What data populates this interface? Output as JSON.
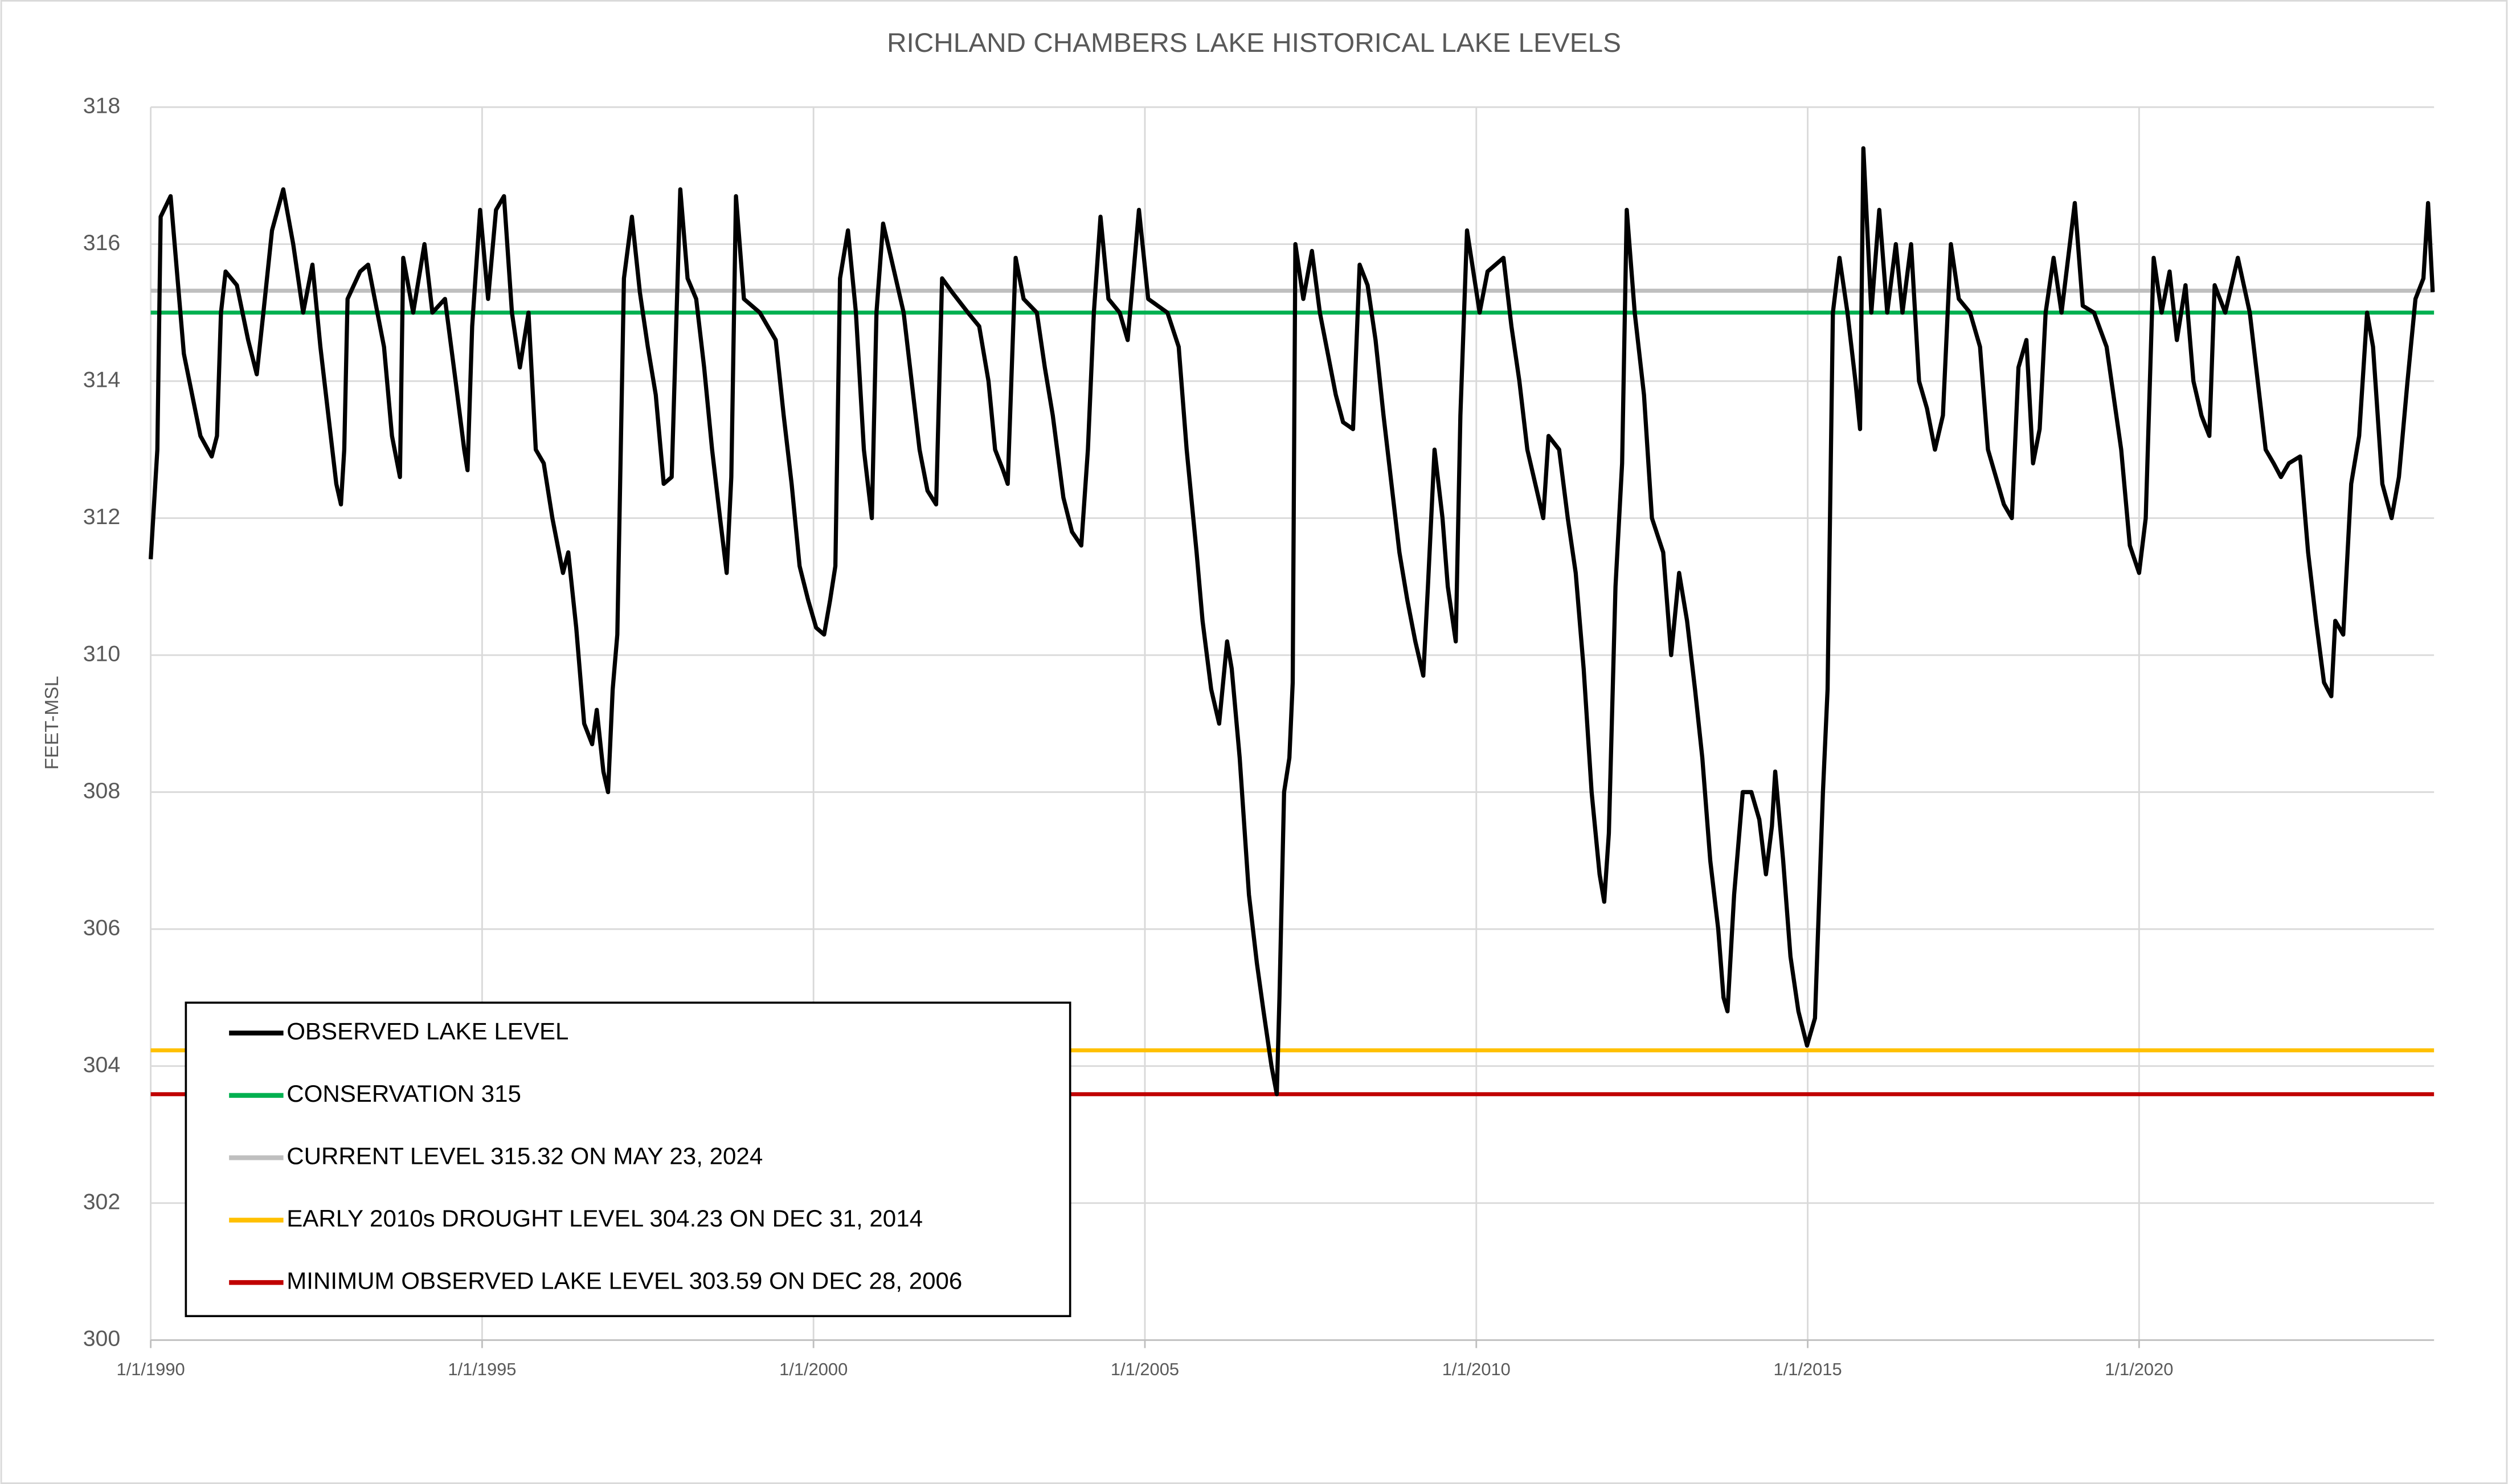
{
  "chart_data": {
    "type": "line",
    "title": "RICHLAND CHAMBERS LAKE HISTORICAL LAKE LEVELS",
    "y_label": "FEET-MSL",
    "x": [
      1990.0,
      1990.1,
      1990.15,
      1990.3,
      1990.5,
      1990.75,
      1990.92,
      1991.0,
      1991.06,
      1991.13,
      1991.3,
      1991.47,
      1991.6,
      1991.7,
      1991.83,
      1992.0,
      1992.15,
      1992.3,
      1992.44,
      1992.56,
      1992.68,
      1992.8,
      1992.87,
      1992.92,
      1992.97,
      1993.16,
      1993.28,
      1993.4,
      1993.52,
      1993.64,
      1993.76,
      1993.81,
      1993.96,
      1994.13,
      1994.25,
      1994.44,
      1994.6,
      1994.73,
      1994.78,
      1994.85,
      1994.97,
      1995.09,
      1995.21,
      1995.33,
      1995.45,
      1995.57,
      1995.7,
      1995.81,
      1995.93,
      1996.06,
      1996.22,
      1996.3,
      1996.42,
      1996.54,
      1996.66,
      1996.73,
      1996.83,
      1996.9,
      1996.97,
      1997.04,
      1997.14,
      1997.26,
      1997.38,
      1997.5,
      1997.62,
      1997.74,
      1997.86,
      1997.99,
      1998.1,
      1998.23,
      1998.35,
      1998.47,
      1998.59,
      1998.69,
      1998.76,
      1998.83,
      1998.95,
      1999.19,
      1999.43,
      1999.55,
      1999.67,
      1999.79,
      1999.92,
      2000.04,
      2000.16,
      2000.25,
      2000.33,
      2000.4,
      2000.52,
      2000.64,
      2000.76,
      2000.88,
      2000.95,
      2001.05,
      2001.17,
      2001.36,
      2001.48,
      2001.6,
      2001.72,
      2001.85,
      2001.94,
      2002.09,
      2002.33,
      2002.5,
      2002.64,
      2002.74,
      2002.86,
      2002.93,
      2003.05,
      2003.17,
      2003.37,
      2003.49,
      2003.61,
      2003.77,
      2003.9,
      2004.04,
      2004.14,
      2004.23,
      2004.33,
      2004.45,
      2004.62,
      2004.74,
      2004.91,
      2005.05,
      2005.34,
      2005.51,
      2005.63,
      2005.78,
      2005.87,
      2006.0,
      2006.12,
      2006.24,
      2006.31,
      2006.43,
      2006.57,
      2006.69,
      2006.79,
      2006.91,
      2006.99,
      2007.03,
      2007.1,
      2007.18,
      2007.23,
      2007.27,
      2007.39,
      2007.52,
      2007.64,
      2007.76,
      2007.88,
      2007.99,
      2008.14,
      2008.24,
      2008.36,
      2008.48,
      2008.6,
      2008.72,
      2008.84,
      2008.96,
      2009.08,
      2009.2,
      2009.27,
      2009.37,
      2009.49,
      2009.57,
      2009.69,
      2009.76,
      2009.86,
      2010.05,
      2010.17,
      2010.41,
      2010.53,
      2010.65,
      2010.77,
      2010.89,
      2011.01,
      2011.09,
      2011.25,
      2011.38,
      2011.5,
      2011.62,
      2011.74,
      2011.86,
      2011.93,
      2012.0,
      2012.1,
      2012.2,
      2012.27,
      2012.39,
      2012.53,
      2012.65,
      2012.82,
      2012.94,
      2013.06,
      2013.18,
      2013.3,
      2013.41,
      2013.53,
      2013.65,
      2013.73,
      2013.79,
      2013.89,
      2014.02,
      2014.15,
      2014.27,
      2014.37,
      2014.46,
      2014.51,
      2014.63,
      2014.74,
      2014.86,
      2014.99,
      2015.11,
      2015.23,
      2015.3,
      2015.38,
      2015.48,
      2015.6,
      2015.72,
      2015.79,
      2015.84,
      2015.96,
      2016.08,
      2016.2,
      2016.33,
      2016.43,
      2016.56,
      2016.68,
      2016.8,
      2016.92,
      2017.04,
      2017.16,
      2017.28,
      2017.45,
      2017.6,
      2017.72,
      2017.84,
      2017.96,
      2018.08,
      2018.18,
      2018.3,
      2018.4,
      2018.5,
      2018.59,
      2018.71,
      2018.83,
      2019.03,
      2019.15,
      2019.32,
      2019.51,
      2019.73,
      2019.86,
      2020.0,
      2020.1,
      2020.22,
      2020.34,
      2020.46,
      2020.57,
      2020.7,
      2020.82,
      2020.94,
      2021.06,
      2021.14,
      2021.3,
      2021.49,
      2021.67,
      2021.79,
      2021.91,
      2022.03,
      2022.14,
      2022.26,
      2022.43,
      2022.55,
      2022.67,
      2022.79,
      2022.9,
      2022.96,
      2023.08,
      2023.2,
      2023.32,
      2023.44,
      2023.53,
      2023.67,
      2023.81,
      2023.92,
      2024.05,
      2024.17,
      2024.29,
      2024.36,
      2024.43
    ],
    "series": [
      {
        "name": "OBSERVED LAKE LEVEL",
        "color": "#000000",
        "values": [
          311.4,
          313,
          316.4,
          316.7,
          314.4,
          313.2,
          312.9,
          313.2,
          315,
          315.6,
          315.4,
          314.6,
          314.1,
          315,
          316.2,
          316.8,
          316,
          315,
          315.7,
          314.5,
          313.5,
          312.5,
          312.2,
          313,
          315.2,
          315.6,
          315.7,
          315.1,
          314.5,
          313.2,
          312.6,
          315.8,
          315,
          316,
          315,
          315.2,
          314,
          313,
          312.7,
          314.8,
          316.5,
          315.2,
          316.5,
          316.7,
          315,
          314.2,
          315,
          313,
          312.8,
          312,
          311.2,
          311.5,
          310.4,
          309,
          308.7,
          309.2,
          308.3,
          308,
          309.5,
          310.3,
          315.5,
          316.4,
          315.3,
          314.5,
          313.8,
          312.5,
          312.6,
          316.8,
          315.5,
          315.2,
          314.2,
          313,
          312,
          311.2,
          312.6,
          316.7,
          315.2,
          315,
          314.6,
          313.5,
          312.5,
          311.3,
          310.8,
          310.4,
          310.3,
          310.8,
          311.3,
          315.5,
          316.2,
          315,
          313,
          312,
          315,
          316.3,
          315.8,
          315,
          314,
          313,
          312.4,
          312.2,
          315.5,
          315.3,
          315,
          314.8,
          314,
          313,
          312.7,
          312.5,
          315.8,
          315.2,
          315,
          314.2,
          313.5,
          312.3,
          311.8,
          311.6,
          313,
          315,
          316.4,
          315.2,
          315,
          314.6,
          316.5,
          315.2,
          315,
          314.5,
          313,
          311.5,
          310.5,
          309.5,
          309,
          310.2,
          309.8,
          308.5,
          306.5,
          305.5,
          304.8,
          304,
          303.59,
          305,
          308,
          308.5,
          309.6,
          316,
          315.2,
          315.9,
          315,
          314.4,
          313.8,
          313.4,
          313.3,
          315.7,
          315.4,
          314.6,
          313.5,
          312.5,
          311.5,
          310.8,
          310.2,
          309.7,
          311,
          313,
          312,
          311,
          310.2,
          313.5,
          316.2,
          315,
          315.6,
          315.8,
          314.8,
          314,
          313,
          312.5,
          312,
          313.2,
          313,
          312,
          311.2,
          309.8,
          308,
          306.8,
          306.4,
          307.4,
          311,
          312.8,
          316.5,
          315,
          313.8,
          312,
          311.5,
          310,
          311.2,
          310.5,
          309.5,
          308.5,
          307,
          306,
          305,
          304.8,
          306.5,
          308,
          308,
          307.6,
          306.8,
          307.5,
          308.3,
          307,
          305.6,
          304.8,
          304.3,
          304.7,
          308,
          309.5,
          315,
          315.8,
          315,
          314,
          313.3,
          317.4,
          315,
          316.5,
          315,
          316,
          315,
          316,
          314,
          313.6,
          313,
          313.5,
          316,
          315.2,
          315,
          314.5,
          313,
          312.6,
          312.2,
          312,
          314.2,
          314.6,
          312.8,
          313.3,
          315,
          315.8,
          315,
          316.6,
          315.1,
          315,
          314.5,
          313,
          311.6,
          311.2,
          312,
          315.8,
          315,
          315.6,
          314.6,
          315.4,
          314,
          313.5,
          313.2,
          315.4,
          315,
          315.8,
          315,
          314,
          313,
          312.8,
          312.6,
          312.8,
          312.9,
          311.5,
          310.5,
          309.6,
          309.4,
          310.5,
          310.3,
          312.5,
          313.2,
          315,
          314.5,
          312.5,
          312,
          312.6,
          314,
          315.2,
          315.5,
          316.6,
          315.3
        ]
      }
    ],
    "reference_lines": [
      {
        "name": "CONSERVATION 315",
        "value": 315,
        "color": "#00b050"
      },
      {
        "name": "CURRENT LEVEL 315.32 ON MAY 23, 2024",
        "value": 315.32,
        "color": "#bfbfbf"
      },
      {
        "name": "EARLY 2010s DROUGHT LEVEL 304.23 ON DEC 31, 2014",
        "value": 304.23,
        "color": "#ffc000"
      },
      {
        "name": "MINIMUM OBSERVED LAKE LEVEL 303.59 ON DEC 28, 2006",
        "value": 303.59,
        "color": "#c00000"
      }
    ],
    "xlim": [
      1990,
      2024.45
    ],
    "xticks": [
      {
        "value": 1990,
        "label": "1/1/1990"
      },
      {
        "value": 1995,
        "label": "1/1/1995"
      },
      {
        "value": 2000,
        "label": "1/1/2000"
      },
      {
        "value": 2005,
        "label": "1/1/2005"
      },
      {
        "value": 2010,
        "label": "1/1/2010"
      },
      {
        "value": 2015,
        "label": "1/1/2015"
      },
      {
        "value": 2020,
        "label": "1/1/2020"
      }
    ],
    "ylim": [
      300,
      318
    ],
    "yticks": [
      300,
      302,
      304,
      306,
      308,
      310,
      312,
      314,
      316,
      318
    ],
    "grid": true,
    "legend": "lower left"
  }
}
